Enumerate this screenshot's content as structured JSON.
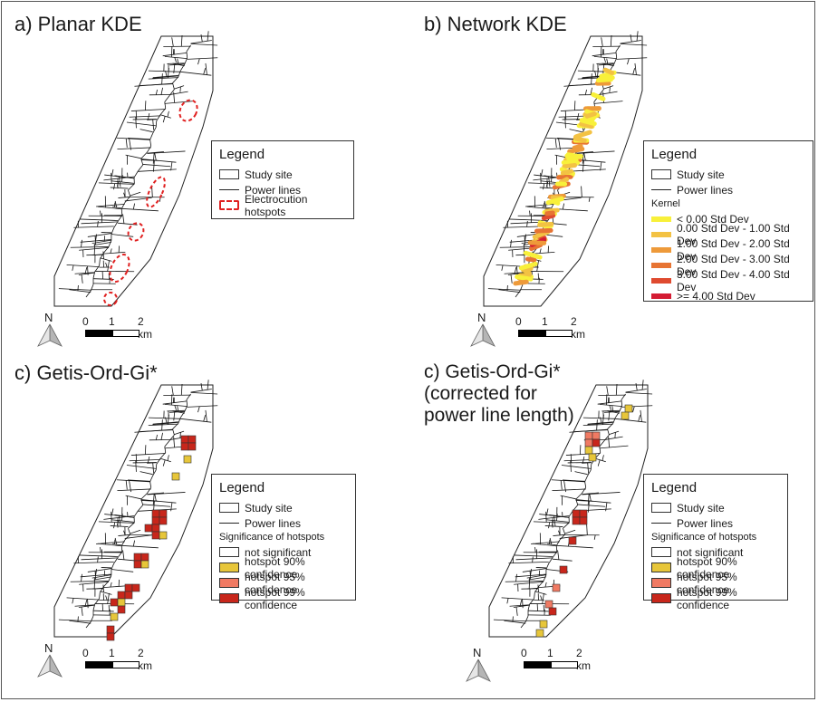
{
  "panels": [
    {
      "title": "a) Planar KDE",
      "legend": {
        "title": "Legend",
        "items": [
          {
            "label": "Study site",
            "symbol": "box"
          },
          {
            "label": "Power lines",
            "symbol": "line"
          },
          {
            "label": "Electrocution hotspots",
            "symbol": "dash"
          }
        ]
      },
      "scale_labels": [
        "0",
        "1",
        "2 km"
      ],
      "north_label": "N"
    },
    {
      "title": "b) Network KDE",
      "legend": {
        "title": "Legend",
        "items": [
          {
            "label": "Study site",
            "symbol": "box"
          },
          {
            "label": "Power lines",
            "symbol": "line"
          }
        ],
        "subtitle": "Kernel",
        "classes": [
          {
            "label": "< 0.00 Std Dev",
            "color": "#f8f03a"
          },
          {
            "label": "0.00 Std Dev - 1.00 Std Dev",
            "color": "#f3c243"
          },
          {
            "label": "1.00 Std Dev - 2.00 Std Dev",
            "color": "#ee9a3a"
          },
          {
            "label": "2.00 Std Dev - 3.00 Std Dev",
            "color": "#e77433"
          },
          {
            "label": "3.00 Std Dev - 4.00 Std Dev",
            "color": "#df4a2f"
          },
          {
            "label": ">= 4.00 Std Dev",
            "color": "#d41c33"
          }
        ]
      },
      "scale_labels": [
        "0",
        "1",
        "2 km"
      ],
      "north_label": "N"
    },
    {
      "title": "c) Getis-Ord-Gi*",
      "legend": {
        "title": "Legend",
        "items": [
          {
            "label": "Study site",
            "symbol": "box"
          },
          {
            "label": "Power lines",
            "symbol": "line"
          }
        ],
        "subtitle": "Significance of hotspots",
        "classes": [
          {
            "label": "not significant",
            "color": "#ffffff"
          },
          {
            "label": "hotspot 90% confidence",
            "color": "#e7c63a"
          },
          {
            "label": "hotspot 95% confidence",
            "color": "#f07a63"
          },
          {
            "label": "hotspot 99% confidence",
            "color": "#c8261b"
          }
        ]
      },
      "scale_labels": [
        "0",
        "1",
        "2 km"
      ],
      "north_label": "N"
    },
    {
      "title": "c) Getis-Ord-Gi*\n(corrected for\npower line length)",
      "legend": {
        "title": "Legend",
        "items": [
          {
            "label": "Study site",
            "symbol": "box"
          },
          {
            "label": "Power lines",
            "symbol": "line"
          }
        ],
        "subtitle": "Significance of hotspots",
        "classes": [
          {
            "label": "not significant",
            "color": "#ffffff"
          },
          {
            "label": "hotspot 90% confidence",
            "color": "#e7c63a"
          },
          {
            "label": "hotspot 95% confidence",
            "color": "#f07a63"
          },
          {
            "label": "hotspot 99% confidence",
            "color": "#c8261b"
          }
        ]
      },
      "scale_labels": [
        "0",
        "1",
        "2 km"
      ],
      "north_label": "N"
    }
  ]
}
